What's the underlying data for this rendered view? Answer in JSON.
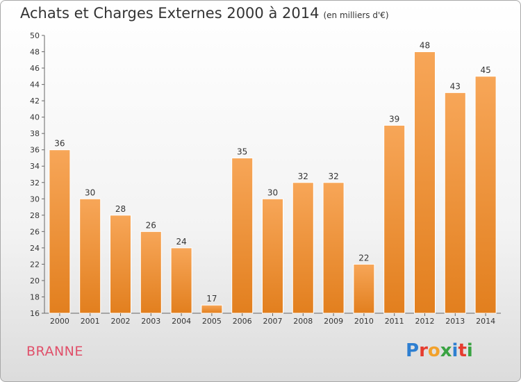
{
  "header": {
    "title": "Achats et Charges Externes 2000 à 2014",
    "subtitle": "(en milliers d'€)"
  },
  "footer": {
    "place": "BRANNE",
    "brand_letters": [
      {
        "ch": "P",
        "color": "#2e7fd1"
      },
      {
        "ch": "r",
        "color": "#e63c2f"
      },
      {
        "ch": "o",
        "color": "#f2a12b"
      },
      {
        "ch": "x",
        "color": "#3aa343"
      },
      {
        "ch": "i",
        "color": "#2e7fd1"
      },
      {
        "ch": "t",
        "color": "#e63c2f"
      },
      {
        "ch": "i",
        "color": "#3aa343"
      }
    ]
  },
  "colors": {
    "bar_light": "#f7a658",
    "bar_dark": "#e27f1e",
    "axis": "#666666",
    "grid": "#dcdcdc",
    "place": "#e0506a"
  },
  "chart_data": {
    "type": "bar",
    "categories": [
      "2000",
      "2001",
      "2002",
      "2003",
      "2004",
      "2005",
      "2006",
      "2007",
      "2008",
      "2009",
      "2010",
      "2011",
      "2012",
      "2013",
      "2014"
    ],
    "values": [
      36,
      30,
      28,
      26,
      24,
      17,
      35,
      30,
      32,
      32,
      22,
      39,
      48,
      43,
      45
    ],
    "ylim": [
      16,
      50
    ],
    "yticks": [
      16,
      18,
      20,
      22,
      24,
      26,
      28,
      30,
      32,
      34,
      36,
      38,
      40,
      42,
      44,
      46,
      48,
      50
    ],
    "data_labels": true,
    "grid": false
  }
}
